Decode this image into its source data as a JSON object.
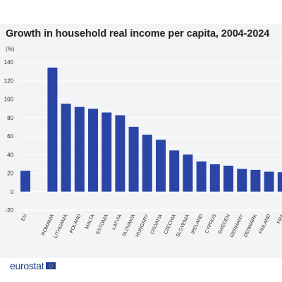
{
  "header": {
    "title": "Growth in household real income per capita, 2004-2024",
    "unit": "(%)"
  },
  "footer": {
    "brand": "eurostat",
    "logo_icon": "eu-flag-icon"
  },
  "colors": {
    "bar": "#2b45a6",
    "panel_background": "#f3f4f6",
    "grid": "#ffffff",
    "brand": "#1d3b85"
  },
  "chart_data": {
    "type": "bar",
    "title": "Growth in household real income per capita, 2004-2024",
    "ylabel": "(%)",
    "xlabel": "",
    "ylim": [
      -20,
      140
    ],
    "yticks": [
      -20,
      0,
      20,
      40,
      60,
      80,
      100,
      120,
      140
    ],
    "grid": true,
    "categories": [
      "EU",
      "",
      "ROMANIA",
      "LITHUANIA",
      "POLAND",
      "MALTA",
      "ESTONIA",
      "LATVIA",
      "SLOVAKIA",
      "HUNGARY",
      "CROATIA",
      "CZECHIA",
      "SLOVENIA",
      "IRELAND",
      "CYPRUS",
      "SWEDEN",
      "GERMANY",
      "DENMARK",
      "FINLAND",
      "FRA"
    ],
    "values": [
      22.5,
      null,
      134,
      95,
      91.5,
      89.5,
      85.5,
      82.5,
      70,
      61.5,
      56,
      44.5,
      40,
      32.5,
      29.5,
      28,
      24.5,
      23.5,
      21.5,
      21
    ]
  }
}
